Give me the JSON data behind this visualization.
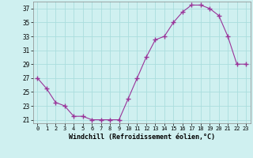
{
  "x": [
    0,
    1,
    2,
    3,
    4,
    5,
    6,
    7,
    8,
    9,
    10,
    11,
    12,
    13,
    14,
    15,
    16,
    17,
    18,
    19,
    20,
    21,
    22,
    23
  ],
  "y": [
    27,
    25.5,
    23.5,
    23,
    21.5,
    21.5,
    21,
    21,
    21,
    21,
    24,
    27,
    30,
    32.5,
    33,
    35,
    36.5,
    37.5,
    37.5,
    37,
    36,
    33,
    29,
    29
  ],
  "line_color": "#993399",
  "marker": "+",
  "marker_size": 4,
  "bg_color": "#cff0f0",
  "grid_color": "#aadddd",
  "xlabel": "Windchill (Refroidissement éolien,°C)",
  "ylim": [
    20.5,
    38
  ],
  "yticks": [
    21,
    23,
    25,
    27,
    29,
    31,
    33,
    35,
    37
  ],
  "xlim": [
    -0.5,
    23.5
  ],
  "xticks": [
    0,
    1,
    2,
    3,
    4,
    5,
    6,
    7,
    8,
    9,
    10,
    11,
    12,
    13,
    14,
    15,
    16,
    17,
    18,
    19,
    20,
    21,
    22,
    23
  ]
}
